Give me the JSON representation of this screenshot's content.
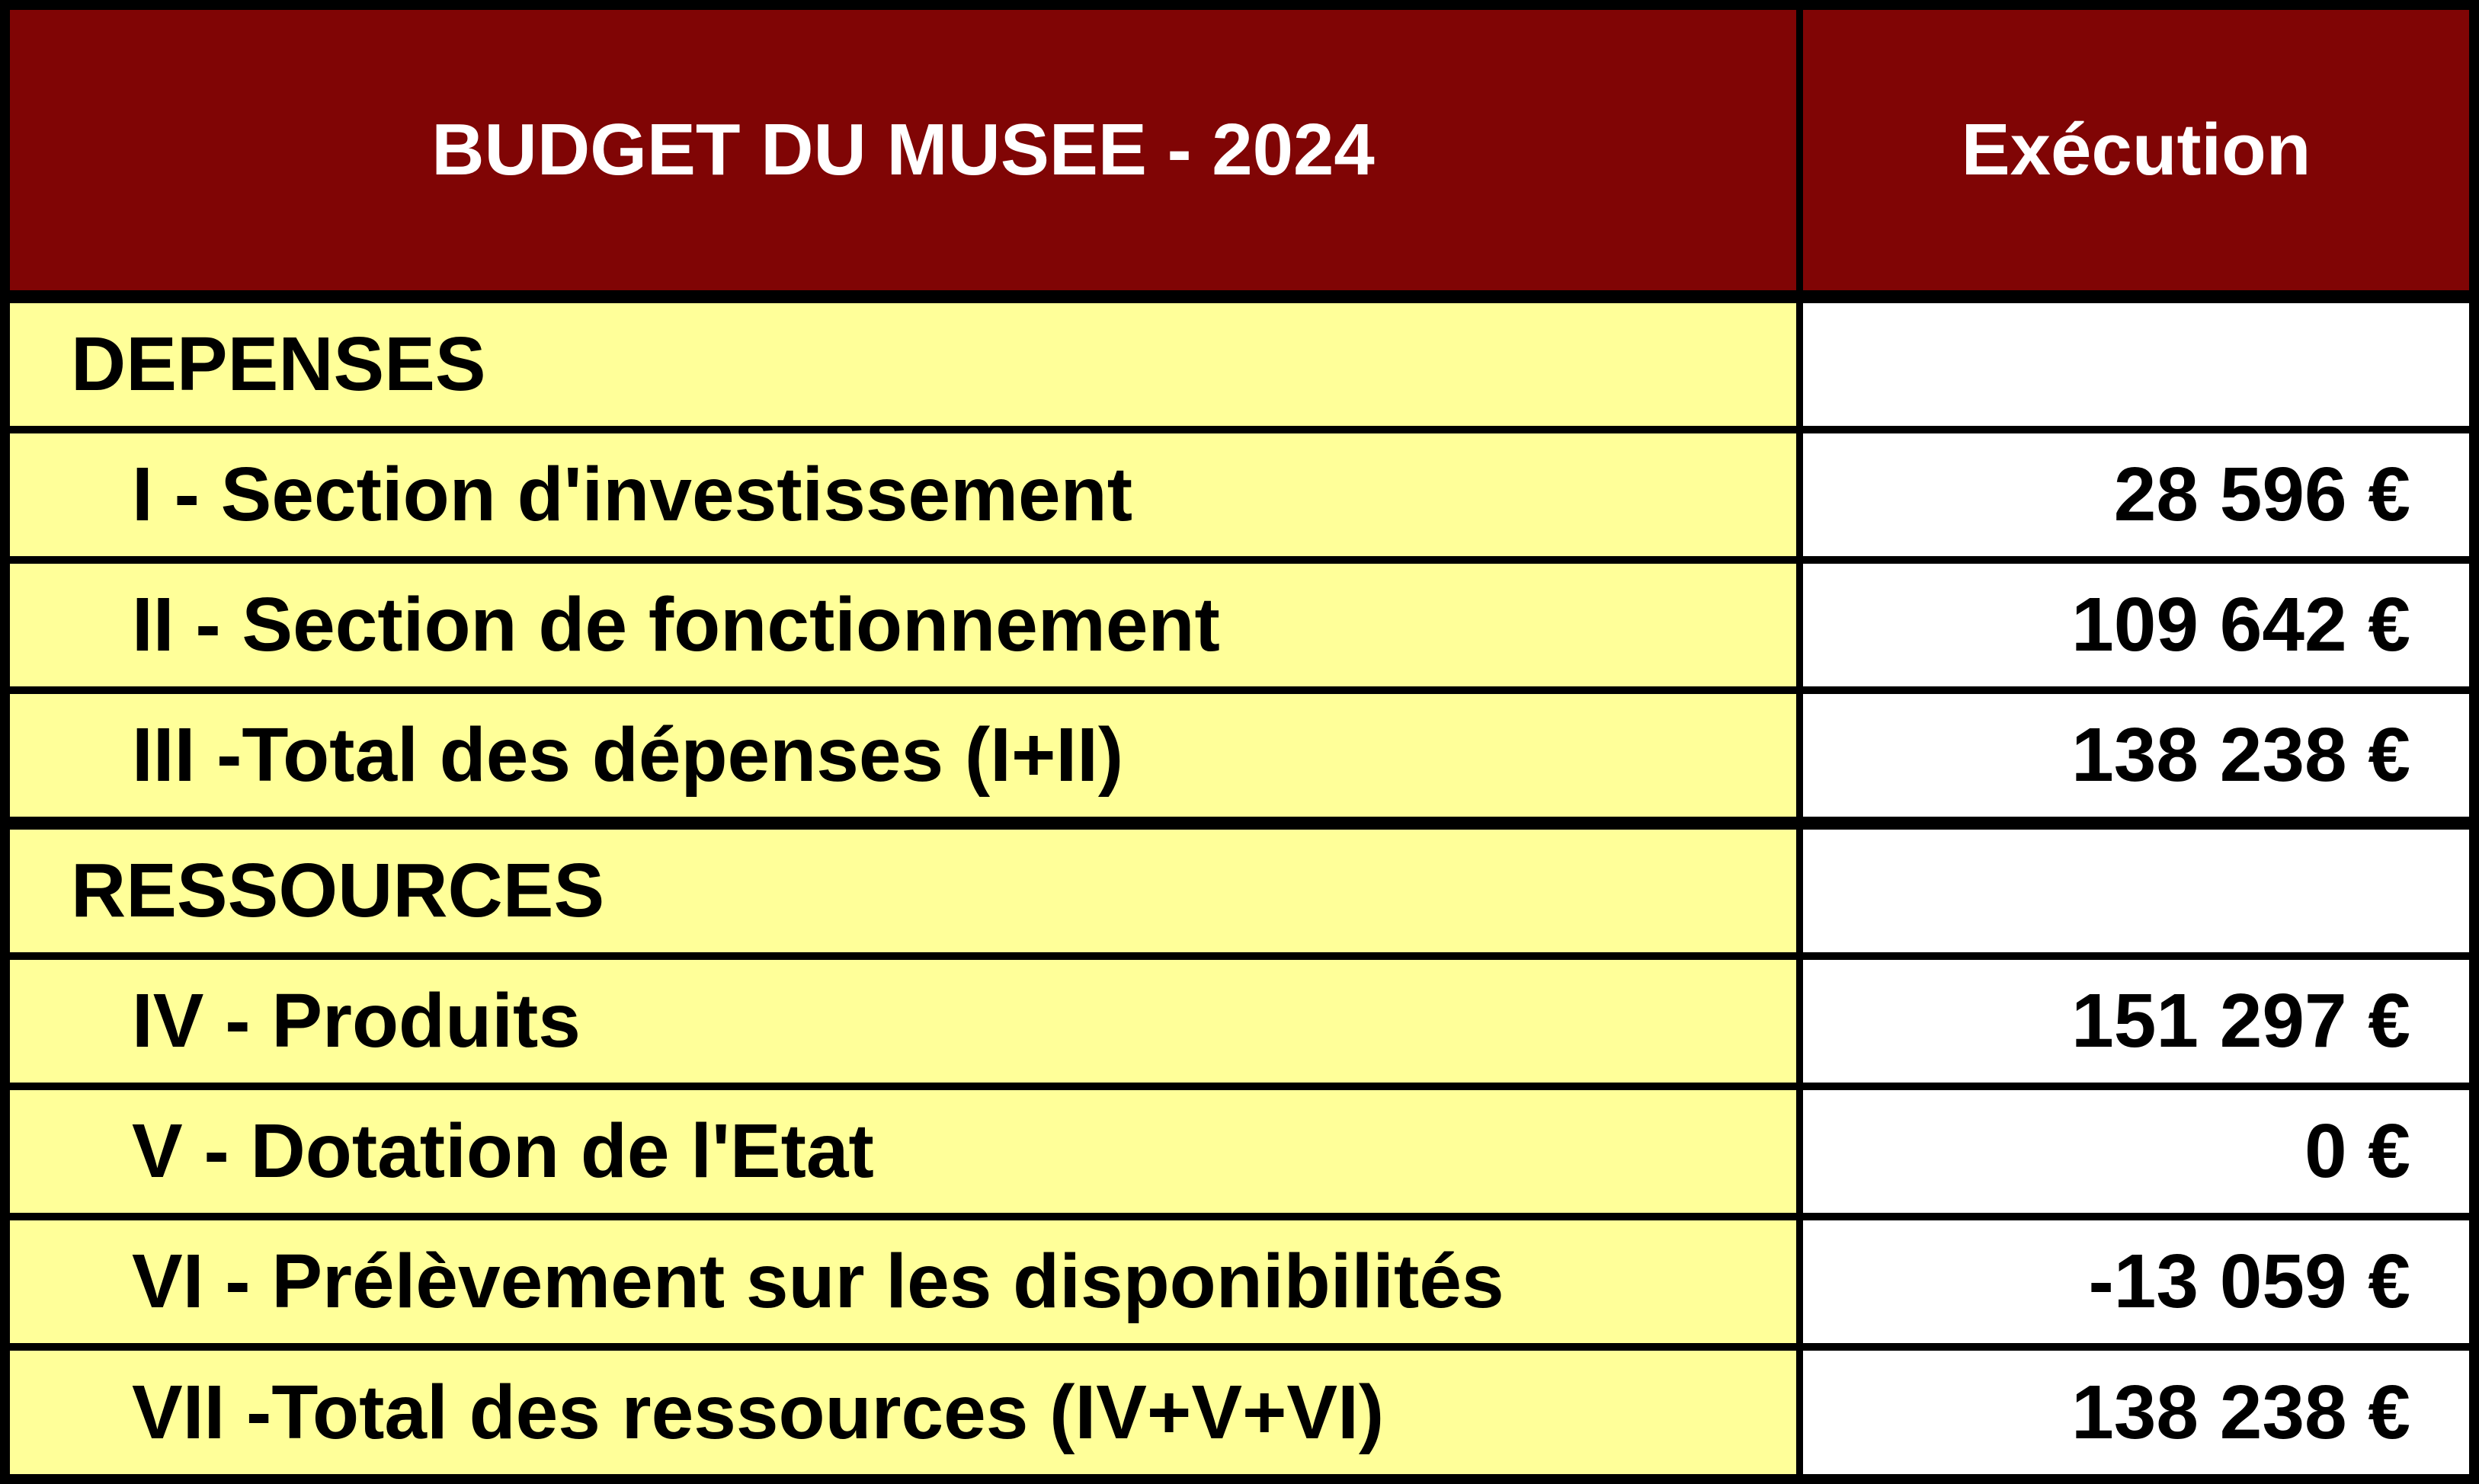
{
  "table": {
    "header": {
      "title": "BUDGET DU MUSEE - 2024",
      "value_col": "Exécution"
    },
    "rows": [
      {
        "label": "DEPENSES",
        "value": "",
        "type": "section"
      },
      {
        "label": "I - Section d'investissement",
        "value": "28 596 €",
        "type": "item"
      },
      {
        "label": "II - Section de fonctionnement",
        "value": "109 642 €",
        "type": "item"
      },
      {
        "label": "III -Total des dépenses (I+II)",
        "value": "138 238 €",
        "type": "item"
      },
      {
        "label": "RESSOURCES",
        "value": "",
        "type": "section"
      },
      {
        "label": "IV - Produits",
        "value": "151 297 €",
        "type": "item"
      },
      {
        "label": "V - Dotation de l'Etat",
        "value": "0 €",
        "type": "item"
      },
      {
        "label": "VI - Prélèvement sur les disponibilités",
        "value": "-13 059 €",
        "type": "item"
      },
      {
        "label": "VII -Total des ressources (IV+V+VI)",
        "value": "138 238 €",
        "type": "item"
      }
    ],
    "colors": {
      "header_bg": "#800505",
      "header_text": "#FFFFFF",
      "label_bg": "#FFFF99",
      "value_bg": "#FFFFFF",
      "body_text": "#000000",
      "border": "#000000"
    }
  }
}
